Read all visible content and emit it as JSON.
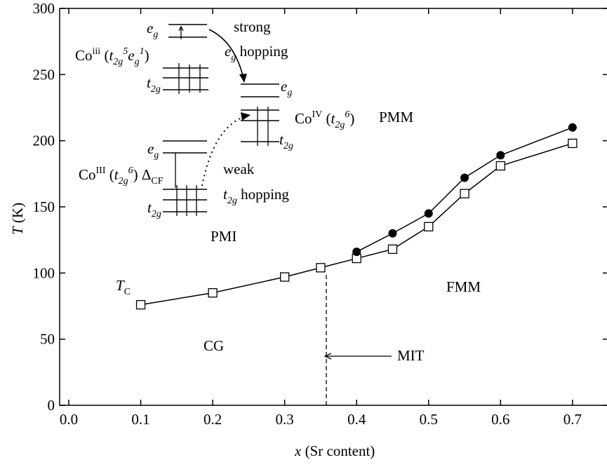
{
  "chart_data": {
    "type": "line",
    "x_label": [
      {
        "text": "x",
        "italic": true
      },
      {
        "text": " (Sr content)"
      }
    ],
    "y_label": [
      {
        "text": "T",
        "italic": true
      },
      {
        "text": " (K)"
      }
    ],
    "xlim": [
      0,
      0.745
    ],
    "ylim": [
      0,
      300
    ],
    "xticks": [
      {
        "value": 0,
        "label": "0.0"
      },
      0.1,
      0.2,
      0.3,
      0.4,
      0.5,
      0.6,
      0.7
    ],
    "yticks": [
      0,
      50,
      100,
      150,
      200,
      250,
      300
    ],
    "series": [
      {
        "marker": "open-square",
        "color": "#000000",
        "x": [
          0.1,
          0.2,
          0.3,
          0.35,
          0.4,
          0.45,
          0.5,
          0.55,
          0.6,
          0.7
        ],
        "values": [
          76,
          85,
          97,
          104,
          111,
          118,
          135,
          160,
          181,
          198
        ]
      },
      {
        "marker": "filled-circle",
        "color": "#000000",
        "x": [
          0.4,
          0.45,
          0.5,
          0.55,
          0.6,
          0.7
        ],
        "values": [
          116,
          130,
          145,
          172,
          189,
          210
        ]
      }
    ],
    "annotations": [
      {
        "segments": [
          {
            "text": "strong"
          }
        ]
      },
      {
        "segments": [
          {
            "text": "e",
            "italic": true
          },
          {
            "text": "g",
            "italic": true,
            "pos": "sub"
          },
          {
            "text": " hopping"
          }
        ]
      },
      {
        "segments": [
          {
            "text": "e",
            "italic": true
          },
          {
            "text": "g",
            "italic": true,
            "pos": "sub"
          }
        ]
      },
      {
        "segments": [
          {
            "text": "Co"
          },
          {
            "text": "iii",
            "pos": "sup"
          },
          {
            "text": " ("
          },
          {
            "text": "t",
            "italic": true
          },
          {
            "text": "2g",
            "italic": true,
            "pos": "sub"
          },
          {
            "text": "5",
            "italic": true,
            "pos": "sup"
          },
          {
            "text": "e",
            "italic": true
          },
          {
            "text": "g",
            "italic": true,
            "pos": "sub"
          },
          {
            "text": "1",
            "italic": true,
            "pos": "sup"
          },
          {
            "text": ")"
          }
        ]
      },
      {
        "segments": [
          {
            "text": "t",
            "italic": true
          },
          {
            "text": "2g",
            "italic": true,
            "pos": "sub"
          }
        ]
      },
      {
        "segments": [
          {
            "text": "e",
            "italic": true
          },
          {
            "text": "g",
            "italic": true,
            "pos": "sub"
          }
        ]
      },
      {
        "segments": [
          {
            "text": "Co"
          },
          {
            "text": "IV",
            "pos": "sup"
          },
          {
            "text": " ("
          },
          {
            "text": "t",
            "italic": true
          },
          {
            "text": "2g",
            "italic": true,
            "pos": "sub"
          },
          {
            "text": "6",
            "italic": true,
            "pos": "sup"
          },
          {
            "text": ")"
          }
        ]
      },
      {
        "segments": [
          {
            "text": "PMM"
          }
        ]
      },
      {
        "segments": [
          {
            "text": "t",
            "italic": true
          },
          {
            "text": "2g",
            "italic": true,
            "pos": "sub"
          }
        ]
      },
      {
        "segments": [
          {
            "text": "e",
            "italic": true
          },
          {
            "text": "g",
            "italic": true,
            "pos": "sub"
          }
        ]
      },
      {
        "segments": [
          {
            "text": "Co"
          },
          {
            "text": "III",
            "pos": "sup"
          },
          {
            "text": " ("
          },
          {
            "text": "t",
            "italic": true
          },
          {
            "text": "2g",
            "italic": true,
            "pos": "sub"
          },
          {
            "text": "6",
            "italic": true,
            "pos": "sup"
          },
          {
            "text": ") Δ"
          },
          {
            "text": "CF",
            "pos": "sub"
          }
        ]
      },
      {
        "segments": [
          {
            "text": "weak"
          }
        ]
      },
      {
        "segments": [
          {
            "text": "t",
            "italic": true
          },
          {
            "text": "2g",
            "italic": true,
            "pos": "sub"
          },
          {
            "text": " hopping"
          }
        ]
      },
      {
        "segments": [
          {
            "text": "t",
            "italic": true
          },
          {
            "text": "2g",
            "italic": true,
            "pos": "sub"
          }
        ]
      },
      {
        "segments": [
          {
            "text": "PMI"
          }
        ]
      },
      {
        "segments": [
          {
            "text": "T",
            "italic": true
          },
          {
            "text": "C",
            "pos": "sub"
          }
        ]
      },
      {
        "segments": [
          {
            "text": "FMM"
          }
        ]
      },
      {
        "segments": [
          {
            "text": "CG"
          }
        ]
      },
      {
        "segments": [
          {
            "text": "MIT"
          }
        ]
      }
    ]
  }
}
